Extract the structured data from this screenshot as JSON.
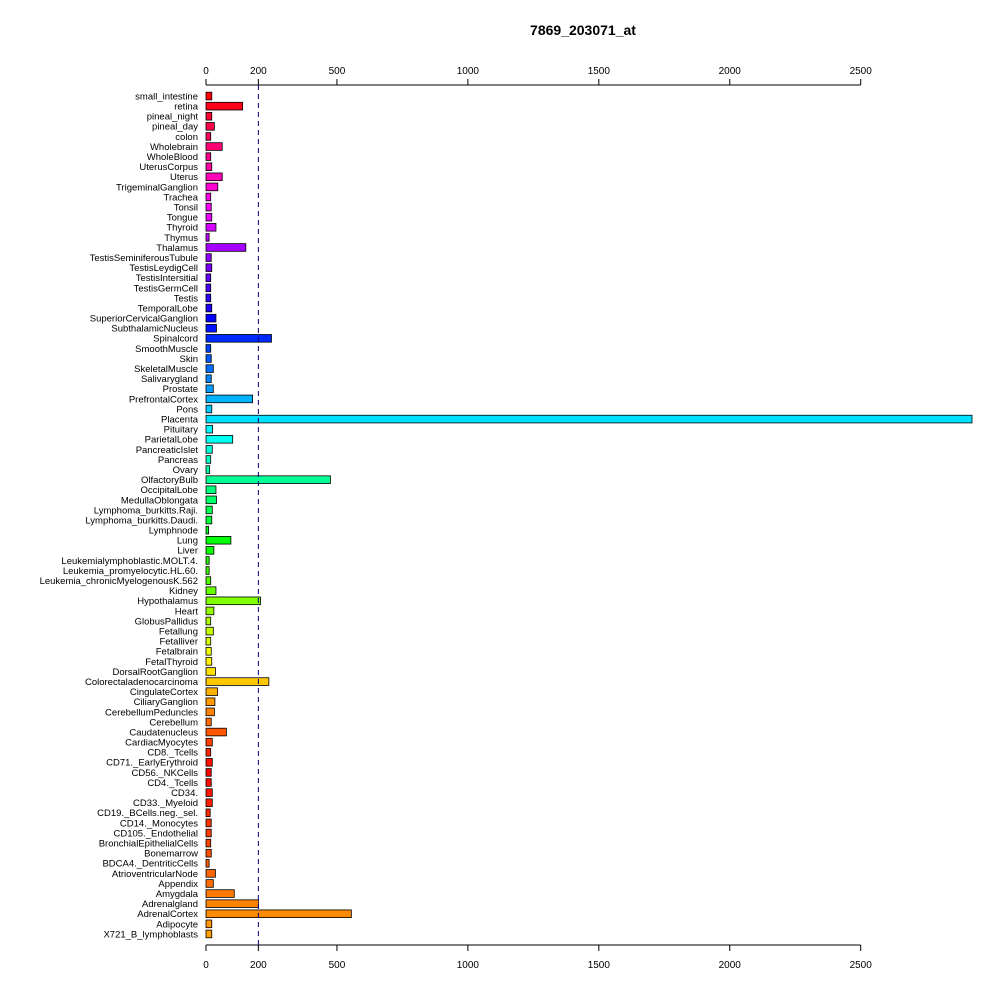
{
  "chart_data": {
    "type": "bar",
    "orientation": "horizontal",
    "title": "7869_203071_at",
    "xlabel": "",
    "ylabel": "",
    "xlim": [
      0,
      2925
    ],
    "xticks": [
      0,
      200,
      500,
      1000,
      1500,
      2000,
      2500
    ],
    "reference_line": 200,
    "axes": [
      "top",
      "bottom"
    ],
    "grid": false,
    "categories": [
      "small_intestine",
      "retina",
      "pineal_night",
      "pineal_day",
      "colon",
      "Wholebrain",
      "WholeBlood",
      "UterusCorpus",
      "Uterus",
      "TrigeminalGanglion",
      "Trachea",
      "Tonsil",
      "Tongue",
      "Thyroid",
      "Thymus",
      "Thalamus",
      "TestisSeminiferousTubule",
      "TestisLeydigCell",
      "TestisIntersitial",
      "TestisGermCell",
      "Testis",
      "TemporalLobe",
      "SuperiorCervicalGanglion",
      "SubthalamicNucleus",
      "Spinalcord",
      "SmoothMuscle",
      "Skin",
      "SkeletalMuscle",
      "Salivarygland",
      "Prostate",
      "PrefrontalCortex",
      "Pons",
      "Placenta",
      "Pituitary",
      "ParietalLobe",
      "PancreaticIslet",
      "Pancreas",
      "Ovary",
      "OlfactoryBulb",
      "OccipitalLobe",
      "MedullaOblongata",
      "Lymphoma_burkitts.Raji.",
      "Lymphoma_burkitts.Daudi.",
      "Lymphnode",
      "Lung",
      "Liver",
      "Leukemialymphoblastic.MOLT.4.",
      "Leukemia_promyelocytic.HL.60.",
      "Leukemia_chronicMyelogenousK.562",
      "Kidney",
      "Hypothalamus",
      "Heart",
      "GlobusPallidus",
      "Fetallung",
      "Fetalliver",
      "Fetalbrain",
      "FetalThyroid",
      "DorsalRootGanglion",
      "Colorectaladenocarcinoma",
      "CingulateCortex",
      "CiliaryGanglion",
      "CerebellumPeduncles",
      "Cerebellum",
      "Caudatenucleus",
      "CardiacMyocytes",
      "CD8._Tcells",
      "CD71._EarlyErythroid",
      "CD56._NKCells",
      "CD4._Tcells",
      "CD34.",
      "CD33._Myeloid",
      "CD19._BCells.neg._sel.",
      "CD14._Monocytes",
      "CD105._Endothelial",
      "BronchialEpithelialCells",
      "Bonemarrow",
      "BDCA4._DentriticCells",
      "AtrioventricularNode",
      "Appendix",
      "Amygdala",
      "Adrenalgland",
      "AdrenalCortex",
      "Adipocyte",
      "X721_B_lymphoblasts"
    ],
    "values": [
      22,
      140,
      22,
      32,
      18,
      62,
      18,
      22,
      62,
      45,
      18,
      20,
      22,
      38,
      12,
      152,
      20,
      22,
      18,
      18,
      18,
      22,
      38,
      40,
      250,
      18,
      20,
      28,
      20,
      28,
      178,
      22,
      2925,
      25,
      102,
      24,
      18,
      14,
      475,
      38,
      40,
      24,
      22,
      10,
      95,
      30,
      12,
      12,
      18,
      38,
      208,
      30,
      18,
      28,
      18,
      20,
      22,
      36,
      240,
      44,
      34,
      32,
      20,
      78,
      24,
      18,
      24,
      20,
      20,
      24,
      24,
      16,
      20,
      20,
      18,
      20,
      12,
      36,
      28,
      108,
      200,
      555,
      22,
      22
    ],
    "colors": [
      "#ff0000",
      "#ff0018",
      "#ff002f",
      "#ff0046",
      "#ff005d",
      "#ff0074",
      "#ff008b",
      "#ff00a2",
      "#ff00b9",
      "#ff00d0",
      "#ff00e7",
      "#ff00fe",
      "#ea00ff",
      "#d300ff",
      "#bc00ff",
      "#a500ff",
      "#8e00ff",
      "#7700ff",
      "#6000ff",
      "#4900ff",
      "#3200ff",
      "#1b00ff",
      "#0400ff",
      "#0012ff",
      "#0029ff",
      "#0040ff",
      "#0057ff",
      "#006eff",
      "#0085ff",
      "#009cff",
      "#00b3ff",
      "#00caff",
      "#00e1ff",
      "#00f8ff",
      "#00fff0",
      "#00ffd9",
      "#00ffc2",
      "#00ffab",
      "#00ff94",
      "#00ff7d",
      "#00ff66",
      "#00ff4f",
      "#00ff38",
      "#00ff21",
      "#00ff0a",
      "#0cff00",
      "#23ff00",
      "#3aff00",
      "#51ff00",
      "#68ff00",
      "#7fff00",
      "#96ff00",
      "#adff00",
      "#c4ff00",
      "#dbff00",
      "#f2ff00",
      "#fff600",
      "#ffdf00",
      "#ffc800",
      "#ffb100",
      "#ff9a00",
      "#ff8300",
      "#ff6c00",
      "#ff5500",
      "#ff3e00",
      "#ff2700",
      "#ff1000",
      "#ff0000",
      "#ff0a00",
      "#ff1400",
      "#ff1e00",
      "#ff2800",
      "#ff3200",
      "#ff3c00",
      "#ff4600",
      "#ff5000",
      "#ff5a00",
      "#ff6400",
      "#ff6e00",
      "#ff7800",
      "#ff8200",
      "#ff8c00",
      "#ff9600",
      "#ffa000"
    ]
  }
}
